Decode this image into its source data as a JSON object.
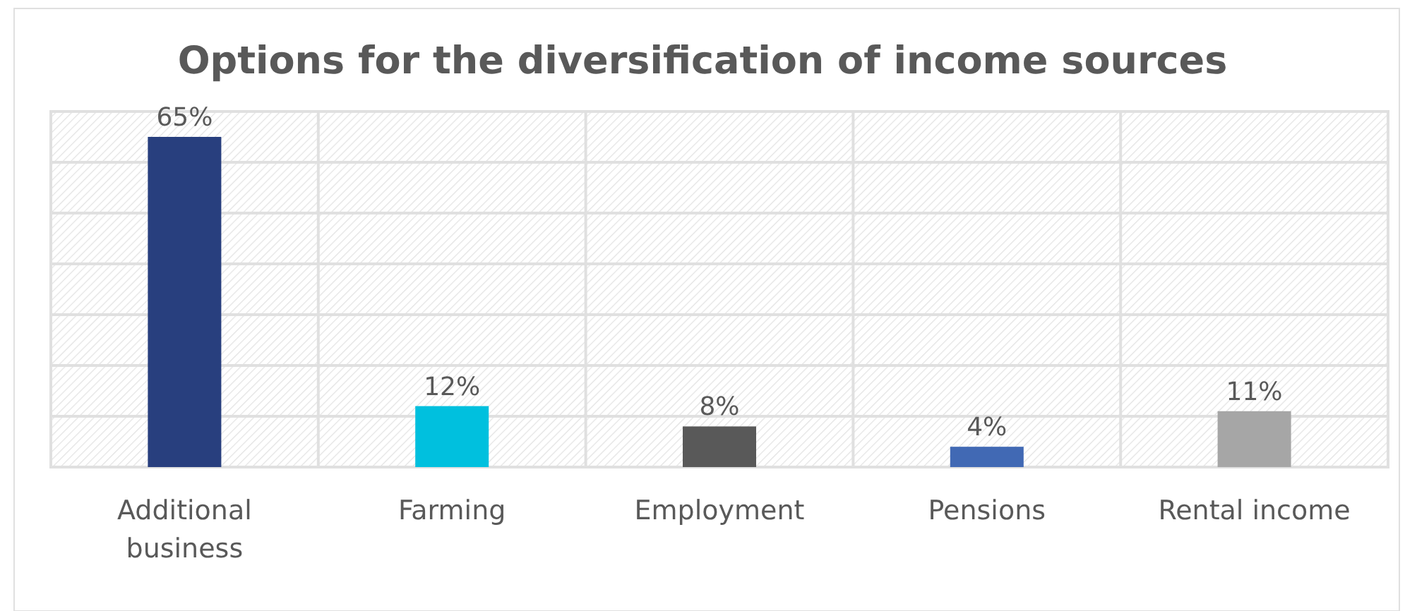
{
  "chart_data": {
    "type": "bar",
    "title": "Options for the diversification of income sources",
    "categories": [
      "Additional business",
      "Farming",
      "Employment",
      "Pensions",
      "Rental income"
    ],
    "values": [
      65,
      12,
      8,
      4,
      11
    ],
    "colors": [
      "#283f7e",
      "#00c0de",
      "#595959",
      "#4169b4",
      "#a6a6a6"
    ],
    "value_labels": [
      "65%",
      "12%",
      "8%",
      "4%",
      "11%"
    ],
    "ylim": [
      0,
      70
    ],
    "yticks": [
      {
        "value": 0,
        "label": null
      },
      {
        "value": 10,
        "label": null
      },
      {
        "value": 20,
        "label": null
      },
      {
        "value": 30,
        "label": null
      },
      {
        "value": 40,
        "label": null
      },
      {
        "value": 50,
        "label": null
      },
      {
        "value": 60,
        "label": null
      },
      {
        "value": 70,
        "label": null
      }
    ],
    "tick_labels": "x",
    "grid": true
  }
}
